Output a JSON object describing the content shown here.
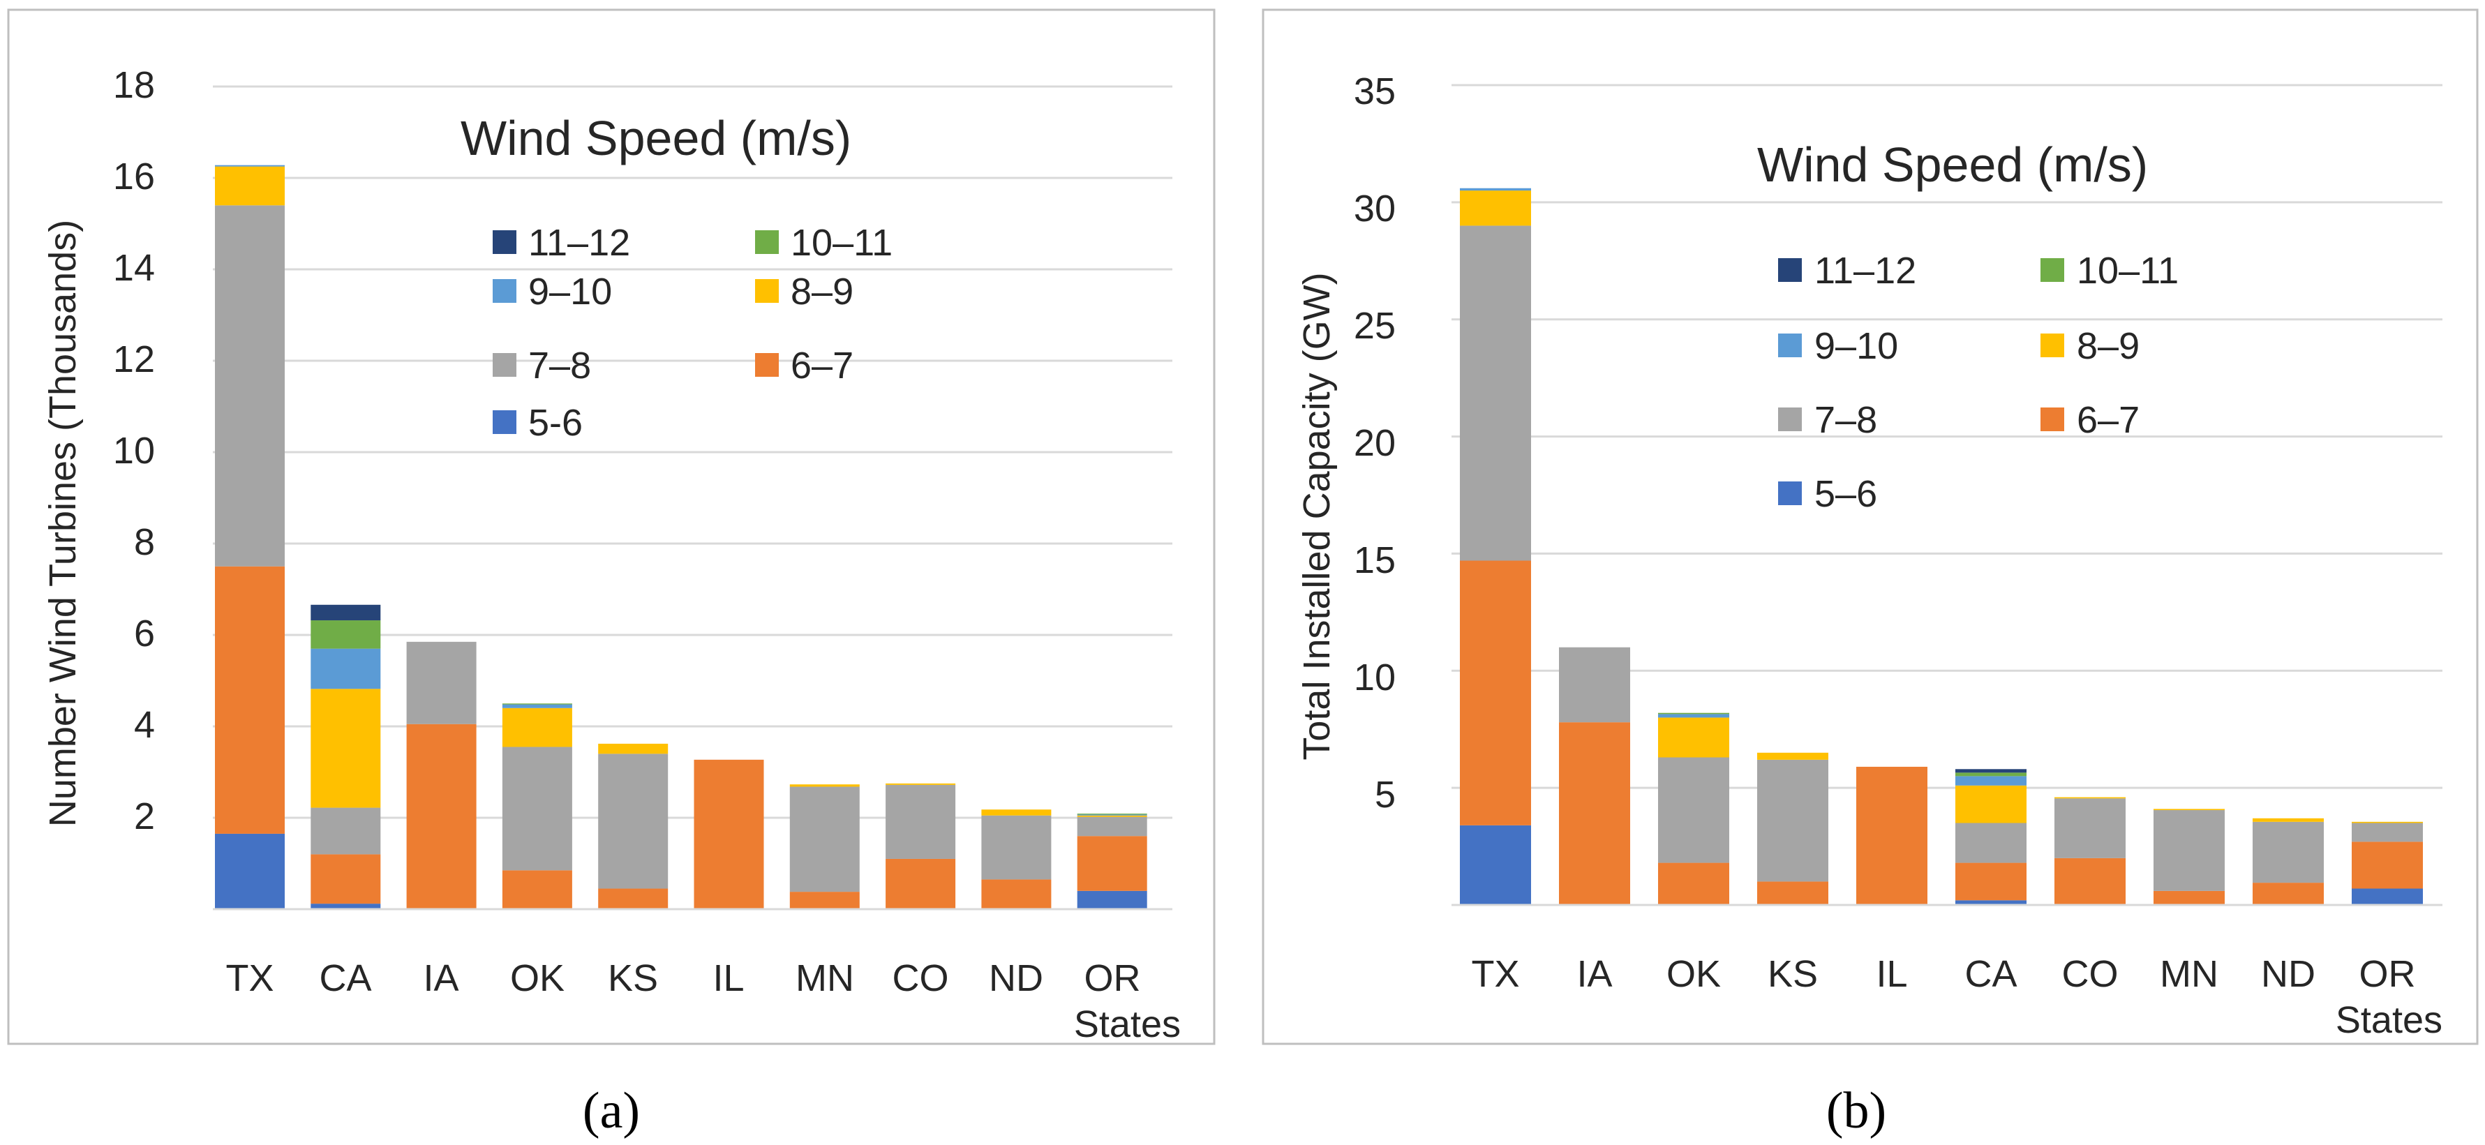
{
  "colors": {
    "5-6": "#4472c4",
    "6-7": "#ed7d31",
    "7-8": "#a5a5a5",
    "8-9": "#ffc000",
    "9-10": "#5b9bd5",
    "10-11": "#70ad47",
    "11-12": "#264478",
    "grid": "#d9d9d9",
    "frame": "#bfbfbf",
    "text": "#262626"
  },
  "chart_data": [
    {
      "panel_label": "(a)",
      "type": "bar",
      "stacked": true,
      "title": "Wind Speed (m/s)",
      "ylabel": "Number Wind Turbines (Thousands)",
      "xlabel": "States",
      "ylim": [
        0,
        18
      ],
      "yticks": [
        "18",
        "16",
        "14",
        "12",
        "10",
        "8",
        "6",
        "4",
        "2"
      ],
      "ytick_values": [
        18,
        16,
        14,
        12,
        10,
        8,
        6,
        4,
        2
      ],
      "grid": true,
      "legend": {
        "placement": "top-right",
        "items": [
          {
            "key": "11-12",
            "label": "11–12"
          },
          {
            "key": "10-11",
            "label": "10–11"
          },
          {
            "key": "9-10",
            "label": "9–10"
          },
          {
            "key": "8-9",
            "label": "8–9"
          },
          {
            "key": "7-8",
            "label": "7–8"
          },
          {
            "key": "6-7",
            "label": "6–7"
          },
          {
            "key": "5-6",
            "label": "5-6"
          }
        ]
      },
      "categories": [
        "TX",
        "CA",
        "IA",
        "OK",
        "KS",
        "IL",
        "MN",
        "CO",
        "ND",
        "OR"
      ],
      "series": [
        {
          "name": "5-6",
          "values": [
            1.65,
            0.12,
            0,
            0,
            0,
            0,
            0,
            0,
            0,
            0.4
          ]
        },
        {
          "name": "6-7",
          "values": [
            5.85,
            1.08,
            4.05,
            0.85,
            0.45,
            3.27,
            0.38,
            1.1,
            0.65,
            1.2
          ]
        },
        {
          "name": "7-8",
          "values": [
            7.9,
            1.02,
            1.8,
            2.7,
            2.95,
            0,
            2.3,
            1.62,
            1.4,
            0.42
          ]
        },
        {
          "name": "8-9",
          "values": [
            0.85,
            2.6,
            0,
            0.85,
            0.22,
            0,
            0.05,
            0.03,
            0.13,
            0.03
          ]
        },
        {
          "name": "9-10",
          "values": [
            0.03,
            0.88,
            0,
            0.08,
            0,
            0,
            0,
            0,
            0,
            0.02
          ]
        },
        {
          "name": "10-11",
          "values": [
            0,
            0.62,
            0,
            0.02,
            0,
            0,
            0,
            0,
            0,
            0.02
          ]
        },
        {
          "name": "11-12",
          "values": [
            0,
            0.34,
            0,
            0,
            0,
            0,
            0,
            0,
            0,
            0
          ]
        }
      ]
    },
    {
      "panel_label": "(b)",
      "type": "bar",
      "stacked": true,
      "title": "Wind Speed (m/s)",
      "ylabel": "Total Installed Capacity (GW)",
      "xlabel": "States",
      "ylim": [
        0,
        35
      ],
      "yticks": [
        "35",
        "30",
        "25",
        "20",
        "15",
        "10",
        "5"
      ],
      "ytick_values": [
        35,
        30,
        25,
        20,
        15,
        10,
        5
      ],
      "grid": true,
      "legend": {
        "placement": "top-right",
        "items": [
          {
            "key": "11-12",
            "label": "11–12"
          },
          {
            "key": "10-11",
            "label": "10–11"
          },
          {
            "key": "9-10",
            "label": "9–10"
          },
          {
            "key": "8-9",
            "label": "8–9"
          },
          {
            "key": "7-8",
            "label": "7–8"
          },
          {
            "key": "6-7",
            "label": "6–7"
          },
          {
            "key": "5-6",
            "label": "5–6"
          }
        ]
      },
      "categories": [
        "TX",
        "IA",
        "OK",
        "KS",
        "IL",
        "CA",
        "CO",
        "MN",
        "ND",
        "OR"
      ],
      "series": [
        {
          "name": "5-6",
          "values": [
            3.4,
            0,
            0,
            0,
            0,
            0.2,
            0,
            0,
            0,
            0.7
          ]
        },
        {
          "name": "6-7",
          "values": [
            11.3,
            7.8,
            1.8,
            1.0,
            5.9,
            1.6,
            2.0,
            0.6,
            0.95,
            2.0
          ]
        },
        {
          "name": "7-8",
          "values": [
            14.3,
            3.2,
            4.5,
            5.2,
            0,
            1.7,
            2.55,
            3.45,
            2.6,
            0.8
          ]
        },
        {
          "name": "8-9",
          "values": [
            1.5,
            0,
            1.7,
            0.3,
            0,
            1.6,
            0.05,
            0.05,
            0.15,
            0.05
          ]
        },
        {
          "name": "9-10",
          "values": [
            0.1,
            0,
            0.15,
            0,
            0,
            0.4,
            0,
            0,
            0,
            0
          ]
        },
        {
          "name": "10-11",
          "values": [
            0,
            0,
            0.05,
            0,
            0,
            0.15,
            0,
            0,
            0,
            0
          ]
        },
        {
          "name": "11-12",
          "values": [
            0,
            0,
            0,
            0,
            0,
            0.15,
            0,
            0,
            0,
            0
          ]
        }
      ]
    }
  ]
}
